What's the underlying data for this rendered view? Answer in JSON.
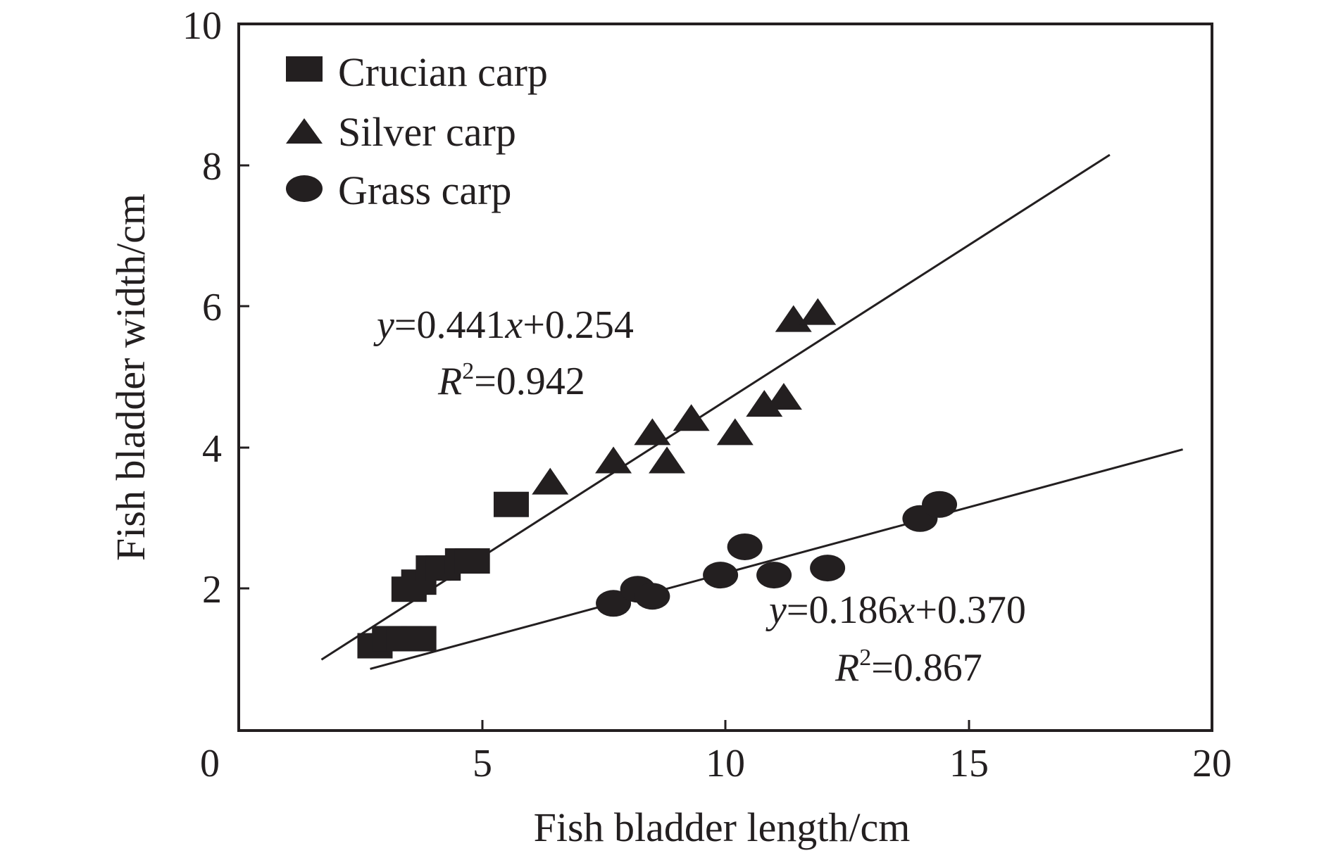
{
  "chart_data": {
    "type": "scatter",
    "xlabel": "Fish bladder length/cm",
    "ylabel": "Fish bladder width/cm",
    "xlim": [
      0,
      20
    ],
    "ylim": [
      0,
      10
    ],
    "xticks": [
      "0",
      "5",
      "10",
      "15",
      "20"
    ],
    "yticks": [
      "2",
      "4",
      "6",
      "8",
      "10"
    ],
    "grid": false,
    "legend_position": "top-left",
    "color": "#231f20",
    "series": [
      {
        "name": "Crucian carp",
        "marker": "square",
        "points": [
          {
            "x": 2.8,
            "y": 1.2
          },
          {
            "x": 3.1,
            "y": 1.3
          },
          {
            "x": 3.4,
            "y": 1.3
          },
          {
            "x": 3.7,
            "y": 1.3
          },
          {
            "x": 3.5,
            "y": 2.0
          },
          {
            "x": 3.7,
            "y": 2.1
          },
          {
            "x": 4.0,
            "y": 2.3
          },
          {
            "x": 4.2,
            "y": 2.3
          },
          {
            "x": 4.6,
            "y": 2.4
          },
          {
            "x": 4.8,
            "y": 2.4
          },
          {
            "x": 5.6,
            "y": 3.2
          }
        ]
      },
      {
        "name": "Silver carp",
        "marker": "triangle",
        "points": [
          {
            "x": 6.4,
            "y": 3.5
          },
          {
            "x": 7.7,
            "y": 3.8
          },
          {
            "x": 8.5,
            "y": 4.2
          },
          {
            "x": 8.8,
            "y": 3.8
          },
          {
            "x": 9.3,
            "y": 4.4
          },
          {
            "x": 10.2,
            "y": 4.2
          },
          {
            "x": 10.8,
            "y": 4.6
          },
          {
            "x": 11.2,
            "y": 4.7
          },
          {
            "x": 11.4,
            "y": 5.8
          },
          {
            "x": 11.9,
            "y": 5.9
          }
        ]
      },
      {
        "name": "Grass carp",
        "marker": "circle",
        "points": [
          {
            "x": 7.7,
            "y": 1.8
          },
          {
            "x": 8.2,
            "y": 2.0
          },
          {
            "x": 8.5,
            "y": 1.9
          },
          {
            "x": 9.9,
            "y": 2.2
          },
          {
            "x": 10.4,
            "y": 2.6
          },
          {
            "x": 11.0,
            "y": 2.2
          },
          {
            "x": 12.1,
            "y": 2.3
          },
          {
            "x": 14.0,
            "y": 3.0
          },
          {
            "x": 14.4,
            "y": 3.2
          }
        ]
      }
    ],
    "fits": [
      {
        "slope": 0.441,
        "intercept": 0.254,
        "x_range": [
          1.7,
          17.9
        ],
        "eq_parts": {
          "y": "y",
          "coef": "=0.441",
          "x": "x",
          "const": "+0.254"
        },
        "r2_parts": {
          "r": "R",
          "sup": "2",
          "val": "=0.942"
        }
      },
      {
        "slope": 0.186,
        "intercept": 0.37,
        "x_range": [
          2.7,
          19.4
        ],
        "eq_parts": {
          "y": "y",
          "coef": "=0.186",
          "x": "x",
          "const": "+0.370"
        },
        "r2_parts": {
          "r": "R",
          "sup": "2",
          "val": "=0.867"
        }
      }
    ]
  }
}
